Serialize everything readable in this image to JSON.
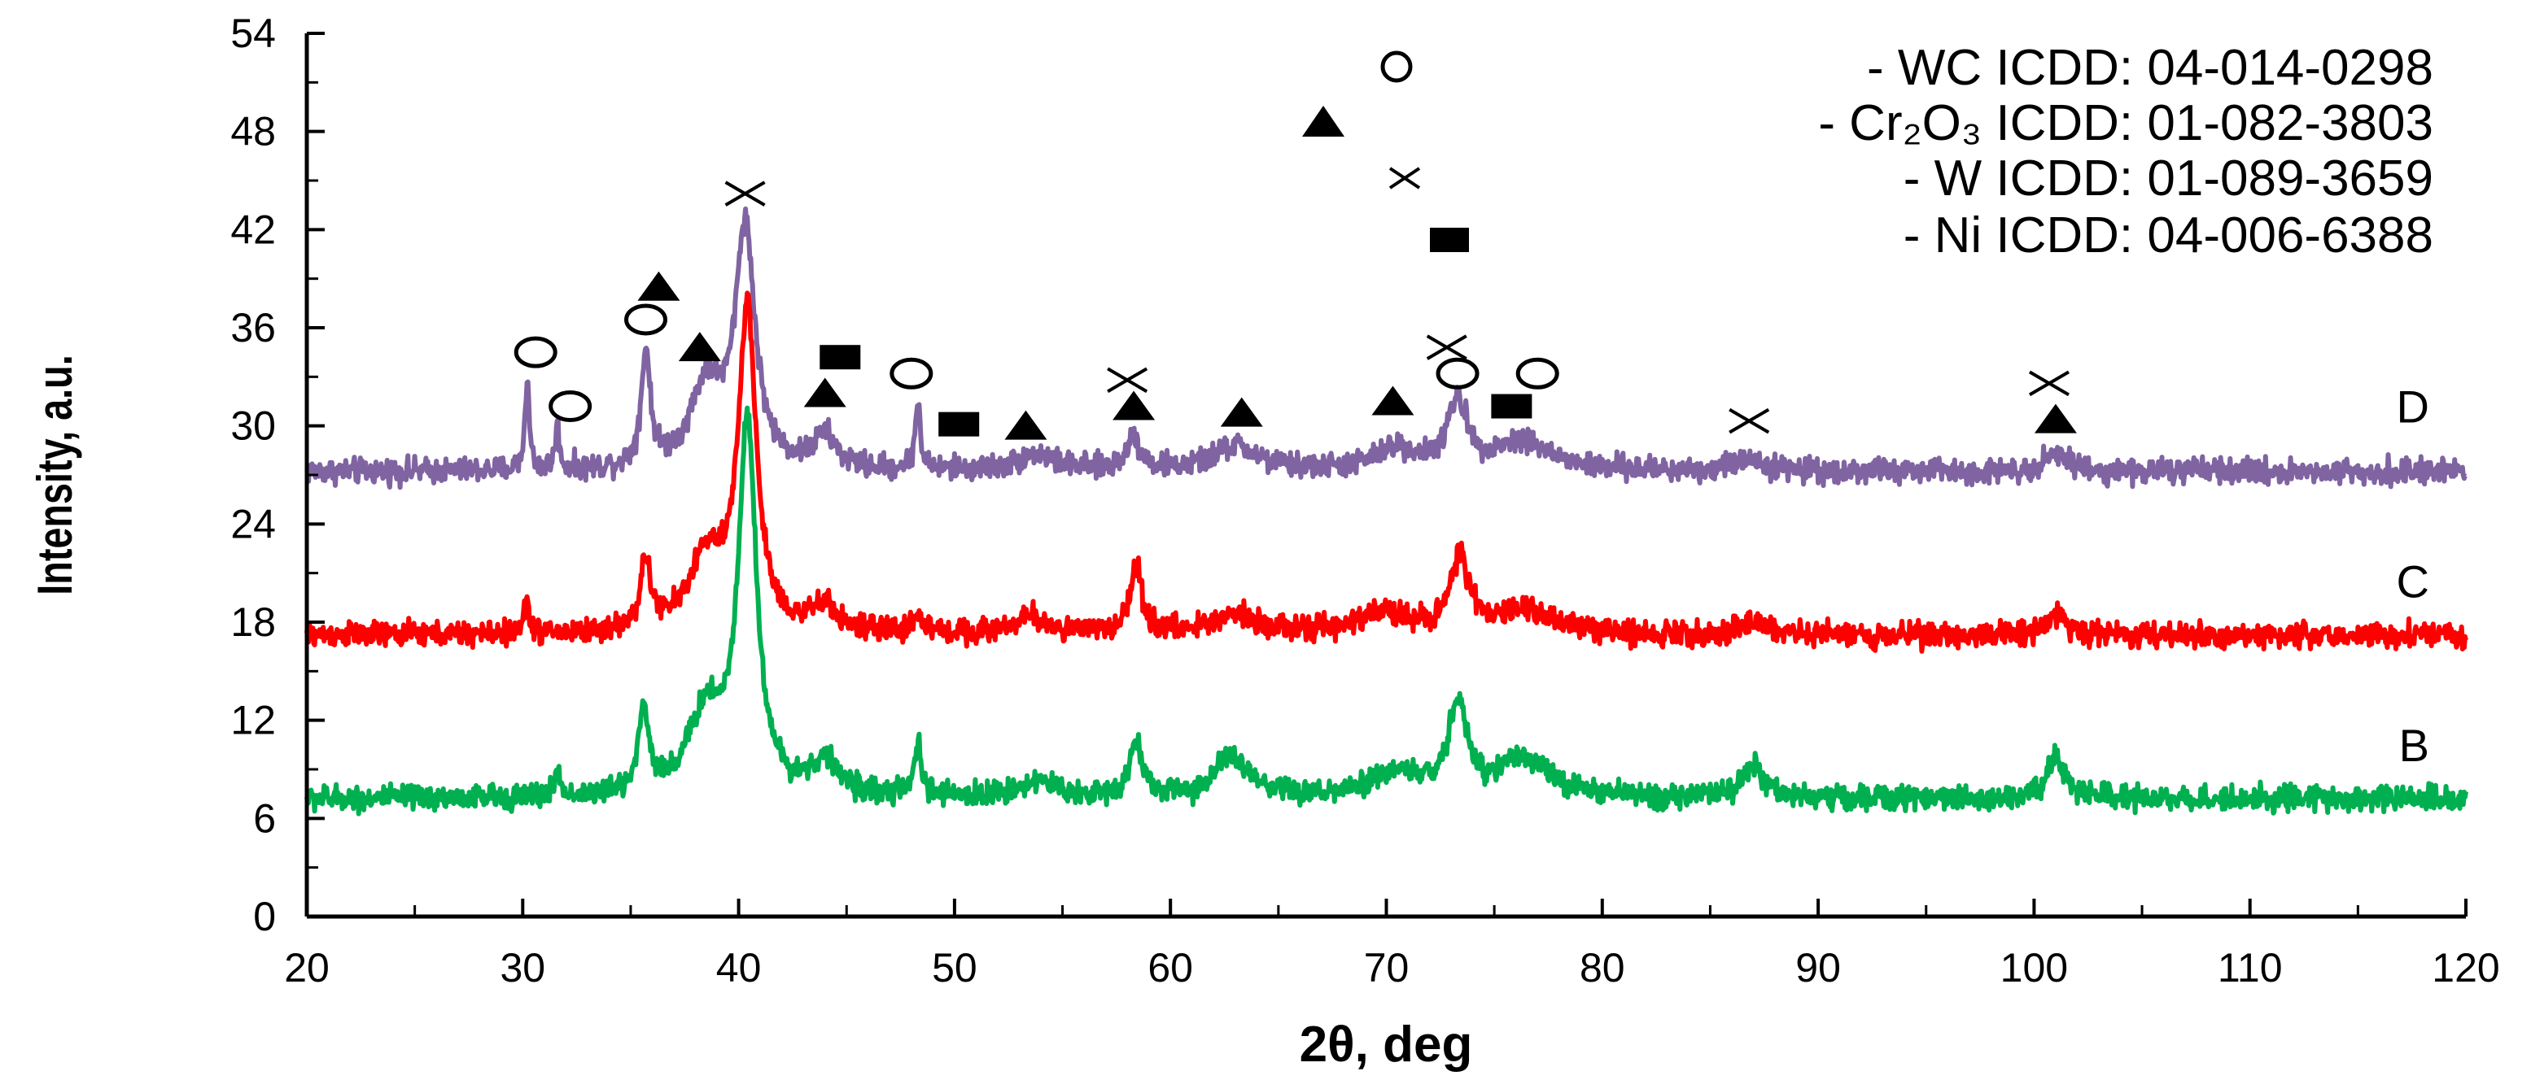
{
  "chart_data": {
    "type": "line",
    "title": "",
    "xlabel": "2θ, deg",
    "ylabel": "Intensity, a.u.",
    "xlim": [
      20,
      120
    ],
    "ylim": [
      0,
      54
    ],
    "xticks": [
      20,
      30,
      40,
      50,
      60,
      70,
      80,
      90,
      100,
      110,
      120
    ],
    "yticks": [
      0,
      6,
      12,
      18,
      24,
      30,
      36,
      42,
      48,
      54
    ],
    "series": [
      {
        "name": "D",
        "color": "#8064a2",
        "baseline": 27.2,
        "noise": 0.75,
        "peaks": [
          {
            "x": 30.2,
            "h": 5.5,
            "w": 0.12
          },
          {
            "x": 31.6,
            "h": 2.6,
            "w": 0.12
          },
          {
            "x": 35.7,
            "h": 7.0,
            "w": 0.25
          },
          {
            "x": 38.5,
            "h": 5.0,
            "w": 0.9
          },
          {
            "x": 40.3,
            "h": 14.5,
            "w": 0.55
          },
          {
            "x": 44.0,
            "h": 2.0,
            "w": 0.6
          },
          {
            "x": 48.3,
            "h": 4.0,
            "w": 0.15
          },
          {
            "x": 53.8,
            "h": 1.0,
            "w": 1.0
          },
          {
            "x": 58.3,
            "h": 2.0,
            "w": 0.4
          },
          {
            "x": 63.0,
            "h": 1.5,
            "w": 1.2
          },
          {
            "x": 70.5,
            "h": 1.3,
            "w": 1.2
          },
          {
            "x": 73.3,
            "h": 4.0,
            "w": 0.55
          },
          {
            "x": 76.3,
            "h": 1.8,
            "w": 1.5
          },
          {
            "x": 86.8,
            "h": 0.8,
            "w": 0.8
          },
          {
            "x": 101.0,
            "h": 1.2,
            "w": 0.6
          }
        ]
      },
      {
        "name": "C",
        "color": "#ff0000",
        "baseline": 17.2,
        "noise": 0.75,
        "peaks": [
          {
            "x": 30.2,
            "h": 2.0,
            "w": 0.15
          },
          {
            "x": 35.7,
            "h": 4.0,
            "w": 0.3
          },
          {
            "x": 38.5,
            "h": 4.5,
            "w": 1.0
          },
          {
            "x": 40.4,
            "h": 19.5,
            "w": 0.5
          },
          {
            "x": 44.0,
            "h": 1.5,
            "w": 0.7
          },
          {
            "x": 48.3,
            "h": 1.0,
            "w": 0.3
          },
          {
            "x": 53.5,
            "h": 1.0,
            "w": 1.0
          },
          {
            "x": 58.4,
            "h": 4.0,
            "w": 0.35
          },
          {
            "x": 63.0,
            "h": 1.3,
            "w": 1.2
          },
          {
            "x": 70.0,
            "h": 1.3,
            "w": 1.5
          },
          {
            "x": 73.4,
            "h": 4.5,
            "w": 0.5
          },
          {
            "x": 76.5,
            "h": 1.5,
            "w": 1.5
          },
          {
            "x": 87.0,
            "h": 0.7,
            "w": 0.8
          },
          {
            "x": 101.0,
            "h": 1.2,
            "w": 0.6
          }
        ]
      },
      {
        "name": "B",
        "color": "#00b050",
        "baseline": 7.2,
        "noise": 0.75,
        "peaks": [
          {
            "x": 31.6,
            "h": 1.5,
            "w": 0.15
          },
          {
            "x": 35.6,
            "h": 5.0,
            "w": 0.3
          },
          {
            "x": 38.5,
            "h": 5.0,
            "w": 1.0
          },
          {
            "x": 40.4,
            "h": 22.5,
            "w": 0.5
          },
          {
            "x": 44.0,
            "h": 2.0,
            "w": 0.8
          },
          {
            "x": 48.3,
            "h": 3.0,
            "w": 0.2
          },
          {
            "x": 53.8,
            "h": 1.0,
            "w": 1.0
          },
          {
            "x": 58.4,
            "h": 3.5,
            "w": 0.35
          },
          {
            "x": 62.8,
            "h": 2.5,
            "w": 0.9
          },
          {
            "x": 70.5,
            "h": 1.5,
            "w": 1.3
          },
          {
            "x": 73.3,
            "h": 5.5,
            "w": 0.5
          },
          {
            "x": 76.3,
            "h": 2.5,
            "w": 1.4
          },
          {
            "x": 87.0,
            "h": 2.0,
            "w": 0.6
          },
          {
            "x": 101.0,
            "h": 2.5,
            "w": 0.5
          }
        ]
      }
    ],
    "curve_labels": [
      {
        "text": "D",
        "y": 31.2
      },
      {
        "text": "C",
        "y": 20.5
      },
      {
        "text": "B",
        "y": 10.5
      }
    ],
    "peak_markers": [
      {
        "symbol": "circle",
        "x": 30.6,
        "y": 34.5
      },
      {
        "symbol": "circle",
        "x": 32.2,
        "y": 31.2
      },
      {
        "symbol": "circle",
        "x": 35.7,
        "y": 36.5
      },
      {
        "symbol": "circle",
        "x": 48.0,
        "y": 33.2
      },
      {
        "symbol": "circle",
        "x": 73.3,
        "y": 33.2
      },
      {
        "symbol": "circle",
        "x": 77.0,
        "y": 33.2
      },
      {
        "symbol": "triangle",
        "x": 36.3,
        "y": 38.5
      },
      {
        "symbol": "triangle",
        "x": 38.2,
        "y": 34.8
      },
      {
        "symbol": "triangle",
        "x": 44.0,
        "y": 32.0
      },
      {
        "symbol": "triangle",
        "x": 53.3,
        "y": 30.0
      },
      {
        "symbol": "triangle",
        "x": 58.3,
        "y": 31.2
      },
      {
        "symbol": "triangle",
        "x": 63.3,
        "y": 30.8
      },
      {
        "symbol": "triangle",
        "x": 70.3,
        "y": 31.5
      },
      {
        "symbol": "triangle",
        "x": 101.0,
        "y": 30.4
      },
      {
        "symbol": "cross",
        "x": 40.3,
        "y": 44.2
      },
      {
        "symbol": "cross",
        "x": 58.0,
        "y": 32.8
      },
      {
        "symbol": "cross",
        "x": 72.8,
        "y": 34.8
      },
      {
        "symbol": "cross",
        "x": 86.8,
        "y": 30.3
      },
      {
        "symbol": "cross",
        "x": 100.7,
        "y": 32.6
      },
      {
        "symbol": "square",
        "x": 44.7,
        "y": 34.2
      },
      {
        "symbol": "square",
        "x": 50.2,
        "y": 30.1
      },
      {
        "symbol": "square",
        "x": 75.8,
        "y": 31.2
      }
    ],
    "legend": {
      "position": "top-right",
      "entries": [
        {
          "symbol": "circle",
          "label": "- WC ICDD: 04-014-0298"
        },
        {
          "symbol": "triangle",
          "label": "- Cr₂O₃ ICDD: 01-082-3803"
        },
        {
          "symbol": "cross",
          "label": "- W ICDD: 01-089-3659"
        },
        {
          "symbol": "square",
          "label": "- Ni ICDD: 04-006-6388"
        }
      ]
    }
  }
}
